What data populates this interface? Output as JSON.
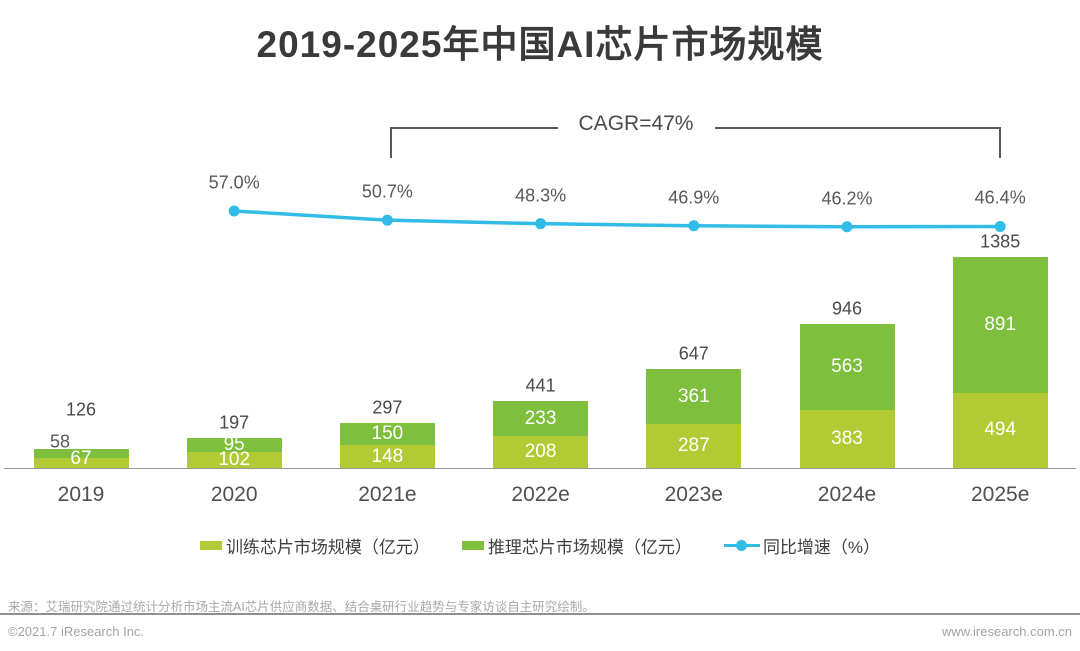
{
  "page": {
    "title": "2019-2025年中国AI芯片市场规模",
    "source_note": "来源：艾瑞研究院通过统计分析市场主流AI芯片供应商数据、结合桌研行业趋势与专家访谈自主研究绘制。",
    "footer_left": "©2021.7 iResearch Inc.",
    "footer_right": "www.iresearch.com.cn"
  },
  "chart_data": {
    "type": "bar",
    "subtype": "stacked-bar-with-growth-line",
    "title": "2019-2025年中国AI芯片市场规模",
    "categories": [
      "2019",
      "2020",
      "2021e",
      "2022e",
      "2023e",
      "2024e",
      "2025e"
    ],
    "series": [
      {
        "name": "训练芯片市场规模（亿元）",
        "type": "bar",
        "stack": "total",
        "color": "#b2ca34",
        "values": [
          67,
          102,
          148,
          208,
          287,
          383,
          494
        ]
      },
      {
        "name": "推理芯片市场规模（亿元）",
        "type": "bar",
        "stack": "total",
        "color": "#7ebf3e",
        "values": [
          58,
          95,
          150,
          233,
          361,
          563,
          891
        ]
      },
      {
        "name": "同比增速（%）",
        "type": "line",
        "color": "#30bce6",
        "values": [
          null,
          57.0,
          50.7,
          48.3,
          46.9,
          46.2,
          46.4
        ],
        "labels": [
          "",
          "57.0%",
          "50.7%",
          "48.3%",
          "46.9%",
          "46.2%",
          "46.4%"
        ]
      }
    ],
    "totals": [
      126,
      197,
      297,
      441,
      647,
      946,
      1385
    ],
    "annotation": "CAGR=47%",
    "annotation_span": [
      "2021e",
      "2025e"
    ],
    "legend_position": "bottom",
    "grid": false,
    "inside_label_color": "#ffffff",
    "outside_label_color": "#595959"
  }
}
